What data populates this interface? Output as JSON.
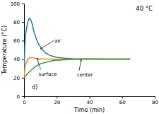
{
  "chart_data": {
    "type": "line",
    "title": "40 °C",
    "xlabel": "Time (min)",
    "ylabel": "Temperature (°C)",
    "xlim": [
      0,
      80
    ],
    "ylim": [
      0,
      100
    ],
    "xticks": [
      0,
      20,
      40,
      60,
      80
    ],
    "yticks": [
      0,
      20,
      40,
      60,
      80,
      100
    ],
    "series": [
      {
        "x": [
          0,
          0.2,
          0.5,
          1.0,
          1.8,
          2.5,
          3.2,
          4.0,
          5.0,
          6.0,
          7.5,
          9,
          11,
          13,
          16,
          20,
          25,
          30,
          40,
          50,
          65
        ],
        "values": [
          25,
          38,
          55,
          67,
          76,
          81,
          84,
          83,
          78,
          70,
          62,
          56,
          51,
          47,
          44,
          42,
          41,
          40.5,
          40.2,
          40,
          40
        ]
      },
      {
        "x": [
          0,
          0.3,
          0.8,
          1.5,
          2.5,
          3.5,
          4.5,
          5.5,
          7,
          9,
          12,
          16,
          20,
          30,
          40,
          55,
          65
        ],
        "values": [
          20,
          26,
          33,
          37,
          40,
          41.5,
          41.8,
          41.5,
          41,
          40.5,
          40.2,
          40,
          40,
          40,
          40,
          40,
          40
        ]
      },
      {
        "x": [
          0,
          0.5,
          1.5,
          3,
          5,
          7,
          10,
          14,
          18,
          23,
          28,
          33,
          38,
          43,
          50,
          65
        ],
        "values": [
          20,
          21,
          23,
          26,
          29,
          32,
          35,
          37,
          38.5,
          39.2,
          39.6,
          39.8,
          40,
          40,
          40,
          40
        ]
      }
    ],
    "annotations": [
      {
        "text": "air",
        "x": 10,
        "y": 51
      },
      {
        "text": "surface",
        "x": 8,
        "y": 41
      },
      {
        "text": "center",
        "x": 35,
        "y": 39.8
      },
      {
        "text": "d)"
      }
    ]
  }
}
